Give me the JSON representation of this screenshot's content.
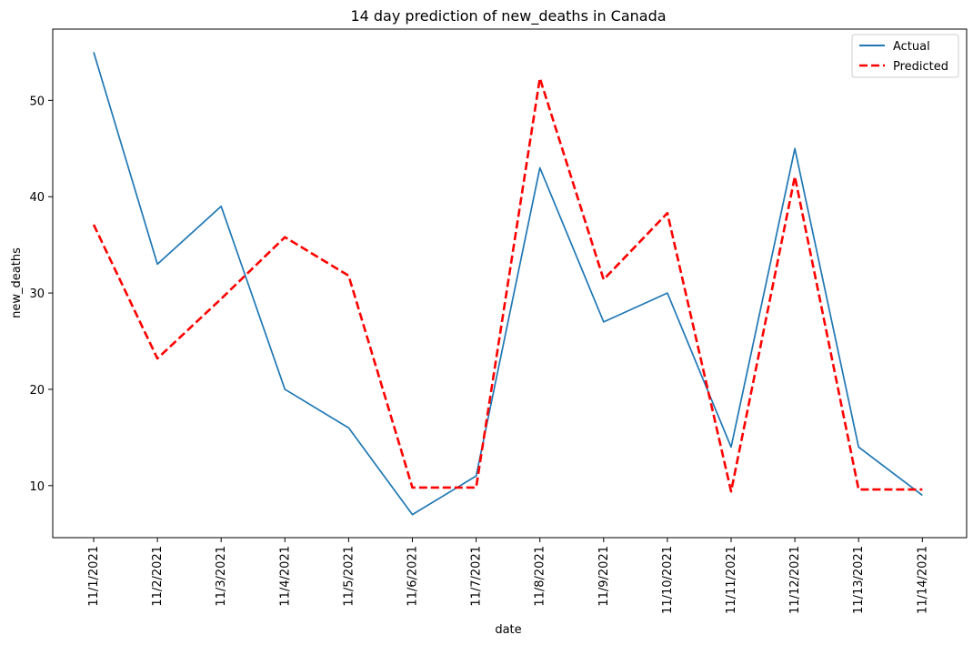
{
  "chart_data": {
    "type": "line",
    "title": "14 day prediction of new_deaths in Canada",
    "xlabel": "date",
    "ylabel": "new_deaths",
    "categories": [
      "11/1/2021",
      "11/2/2021",
      "11/3/2021",
      "11/4/2021",
      "11/5/2021",
      "11/6/2021",
      "11/7/2021",
      "11/8/2021",
      "11/9/2021",
      "11/10/2021",
      "11/11/2021",
      "11/12/2021",
      "11/13/2021",
      "11/14/2021"
    ],
    "ylim": [
      4.6,
      57.4
    ],
    "yticks": [
      10,
      20,
      30,
      40,
      50
    ],
    "grid": false,
    "legend": "top-right",
    "series": [
      {
        "name": "Actual",
        "color": "#1f77b4",
        "style": "solid",
        "values": [
          55,
          33,
          39,
          20,
          16,
          7,
          11,
          43,
          27,
          30,
          14,
          45,
          14,
          9
        ]
      },
      {
        "name": "Predicted",
        "color": "#ff0000",
        "style": "dashed",
        "values": [
          37.1,
          23.2,
          29.4,
          35.8,
          31.8,
          9.8,
          9.8,
          52.3,
          31.4,
          38.3,
          9.4,
          42.1,
          9.6,
          9.6
        ]
      }
    ]
  }
}
